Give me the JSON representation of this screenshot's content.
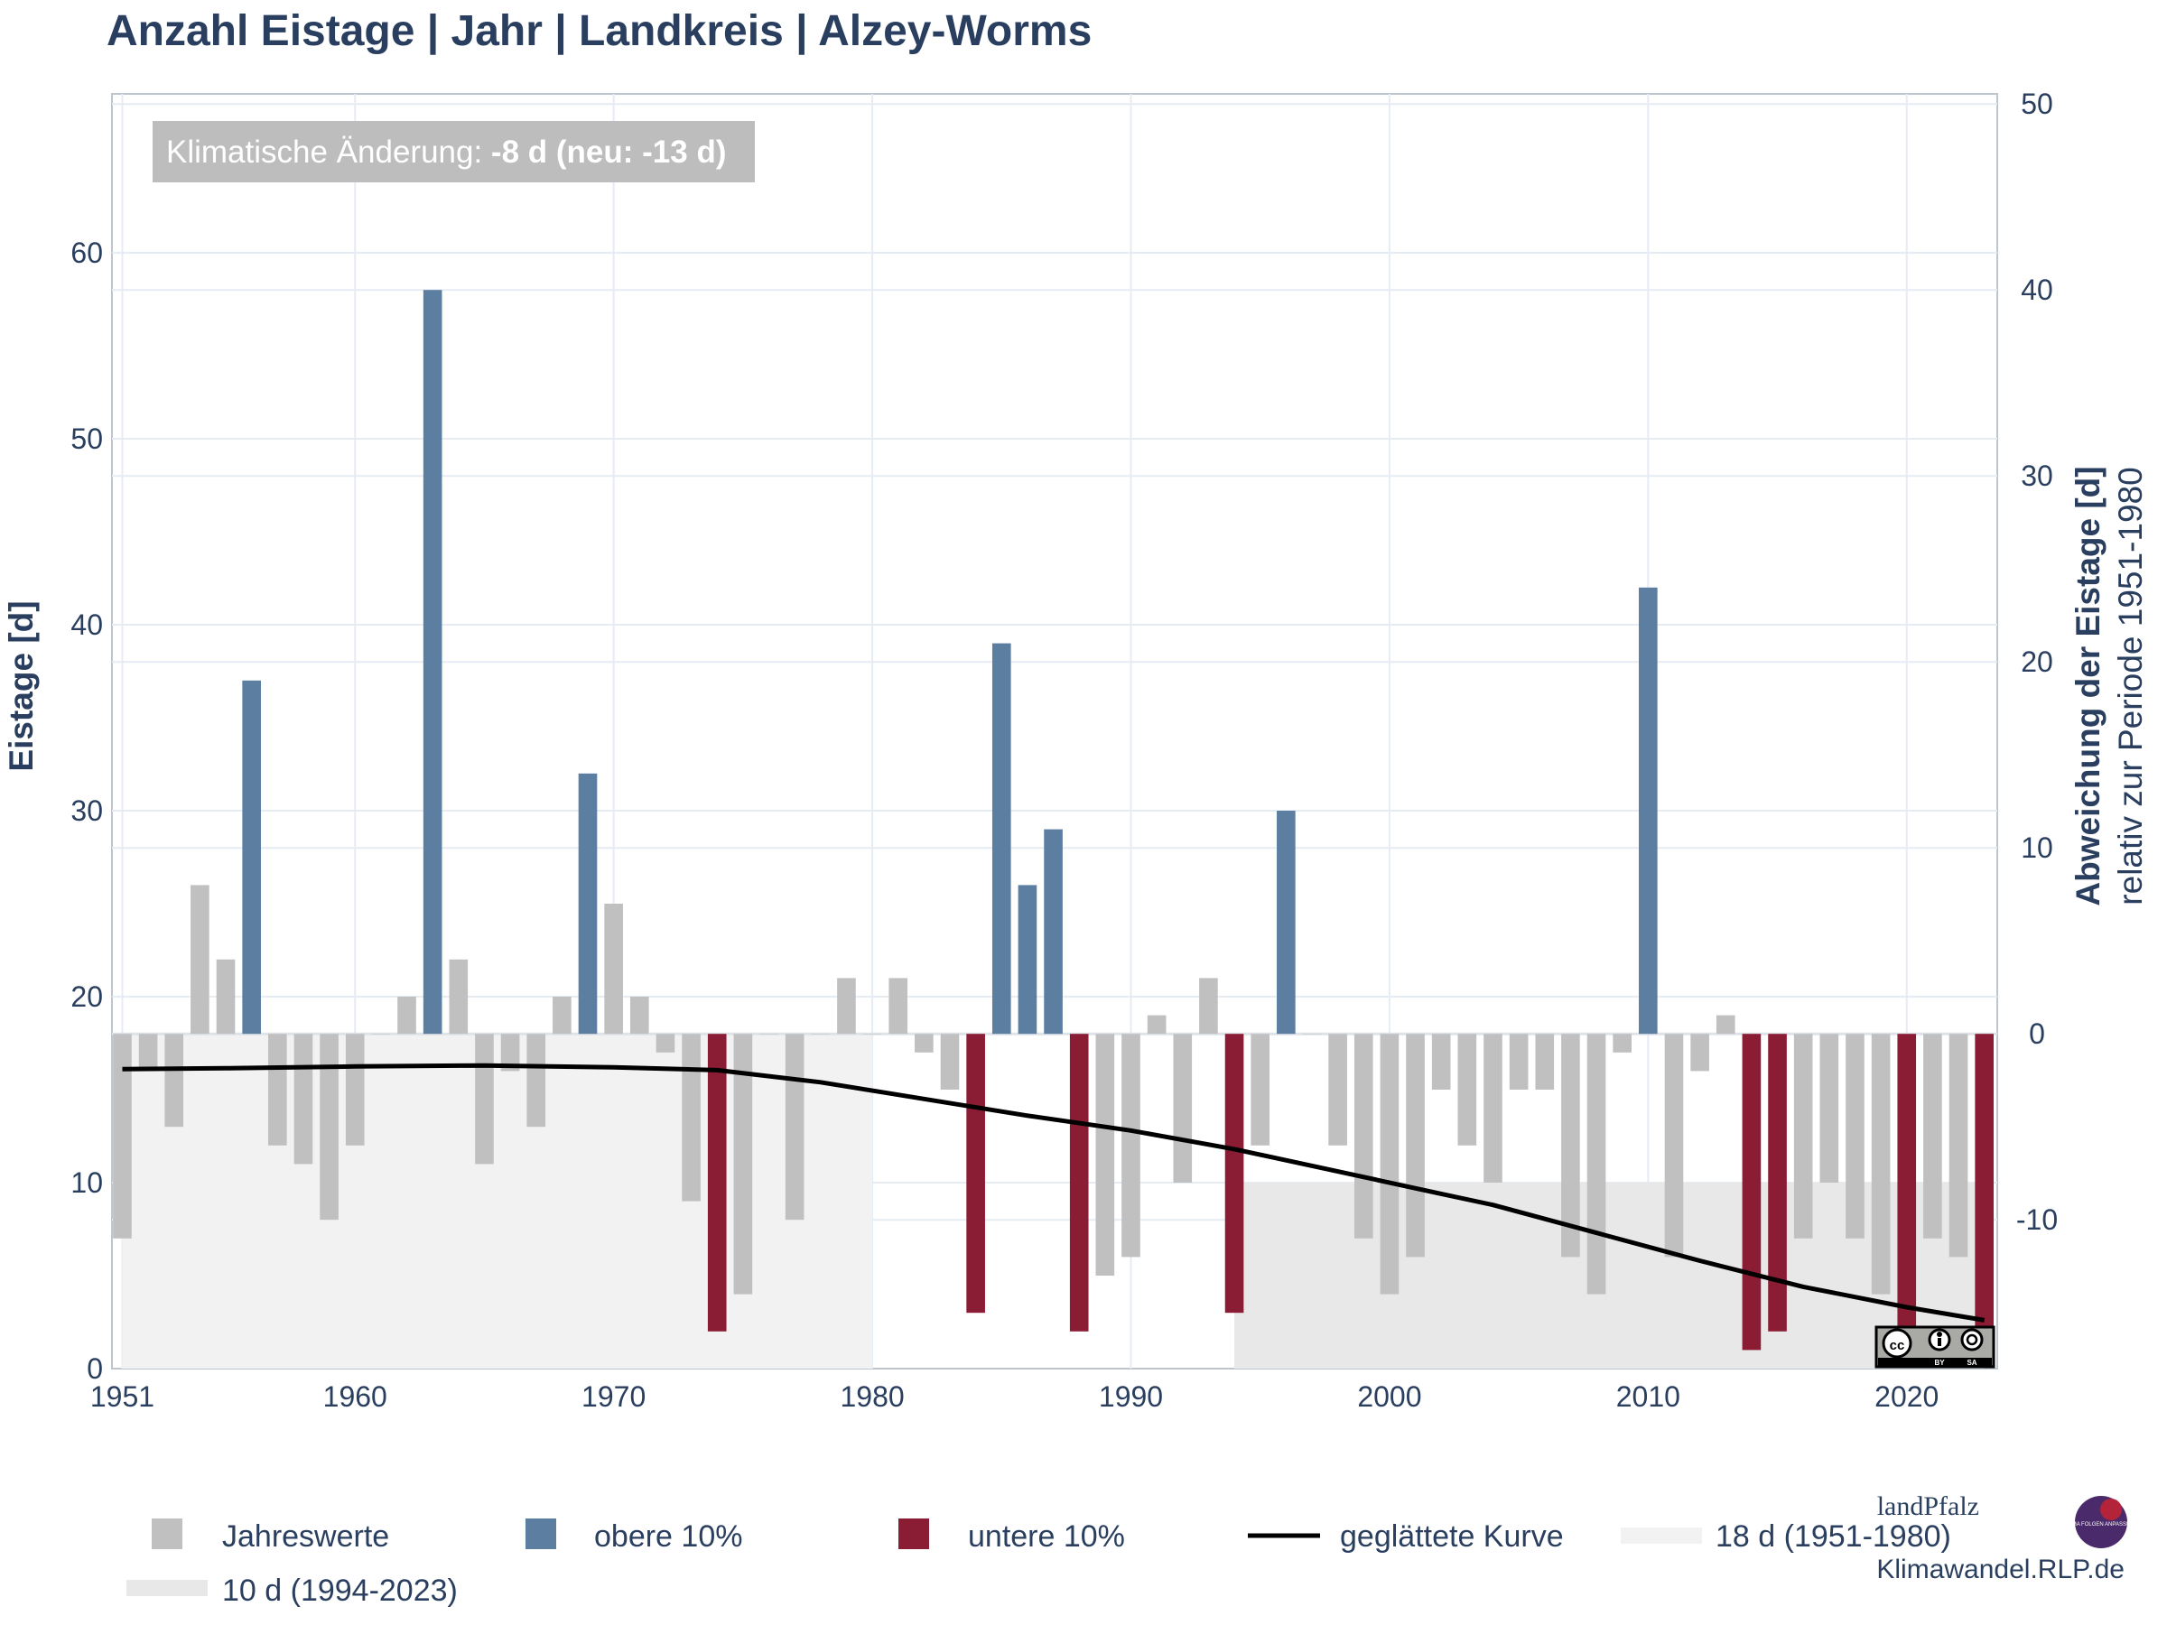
{
  "colors": {
    "normal": "#c0c0c0",
    "upper": "#5b7ea1",
    "lower": "#8a1c34",
    "curve": "#000000",
    "band_ref": "#f2f2f2",
    "band_new": "#e8e8e8",
    "grid": "#e6ecf4",
    "text": "#2a3f5f",
    "annotation_bg": "#bdbdbd"
  },
  "header": {
    "title": "Anzahl Eistage | Jahr | Landkreis | Alzey-Worms"
  },
  "annotation": {
    "label": "Klimatische Änderung: ",
    "value": "-8 d (neu: -13 d)"
  },
  "footer": {
    "source": "Klimawandel.RLP.de",
    "logo_text": "landPfalz",
    "badge_text": "KLIMA FOLGEN ANPASSUNG",
    "license_labels": [
      "cc",
      "BY",
      "SA"
    ]
  },
  "legend": {
    "items": [
      {
        "label": "Jahreswerte",
        "kind": "normal"
      },
      {
        "label": "obere 10%",
        "kind": "upper"
      },
      {
        "label": "untere 10%",
        "kind": "lower"
      },
      {
        "label": "geglättete Kurve",
        "kind": "curve"
      },
      {
        "label": "18 d (1951-1980)",
        "kind": "band_ref"
      },
      {
        "label": "10 d (1994-2023)",
        "kind": "band_new"
      }
    ]
  },
  "chart_data": {
    "type": "bar",
    "baseline": 18,
    "y_left": {
      "label": "Eistage [d]",
      "range": [
        0,
        68
      ],
      "ticks": [
        0,
        10,
        20,
        30,
        40,
        50,
        60
      ]
    },
    "y_right": {
      "label_bold": "Abweichung der Eistage [d]",
      "label_sub": "relativ zur Periode 1951-1980",
      "ticks": [
        -10,
        0,
        10,
        20,
        30,
        40,
        50
      ]
    },
    "x_axis": {
      "range": [
        1950.6,
        2023.5
      ],
      "ticks": [
        1951,
        1960,
        1970,
        1980,
        1990,
        2000,
        2010,
        2020
      ]
    },
    "bands": [
      {
        "label": "18 d (1951-1980)",
        "value": 18,
        "x0": 1951,
        "x1": 1980,
        "kind": "band_ref"
      },
      {
        "label": "10 d (1994-2023)",
        "value": 10,
        "x0": 1994,
        "x1": 2023,
        "kind": "band_new"
      }
    ],
    "series": [
      {
        "name": "Jahreswerte",
        "x": [
          1951,
          1952,
          1953,
          1954,
          1955,
          1956,
          1957,
          1958,
          1959,
          1960,
          1961,
          1962,
          1963,
          1964,
          1965,
          1966,
          1967,
          1968,
          1969,
          1970,
          1971,
          1972,
          1973,
          1974,
          1975,
          1976,
          1977,
          1978,
          1979,
          1980,
          1981,
          1982,
          1983,
          1984,
          1985,
          1986,
          1987,
          1988,
          1989,
          1990,
          1991,
          1992,
          1993,
          1994,
          1995,
          1996,
          1997,
          1998,
          1999,
          2000,
          2001,
          2002,
          2003,
          2004,
          2005,
          2006,
          2007,
          2008,
          2009,
          2010,
          2011,
          2012,
          2013,
          2014,
          2015,
          2016,
          2017,
          2018,
          2019,
          2020,
          2021,
          2022,
          2023
        ],
        "values": [
          7,
          16,
          13,
          26,
          22,
          37,
          12,
          11,
          8,
          12,
          18,
          20,
          58,
          22,
          11,
          16,
          13,
          20,
          32,
          25,
          20,
          17,
          9,
          2,
          4,
          18,
          8,
          18,
          21,
          18,
          21,
          17,
          15,
          3,
          39,
          26,
          29,
          2,
          5,
          6,
          19,
          10,
          21,
          3,
          12,
          30,
          18,
          12,
          7,
          4,
          6,
          15,
          12,
          10,
          15,
          15,
          6,
          4,
          17,
          42,
          6,
          16,
          19,
          1,
          2,
          7,
          10,
          7,
          4,
          2,
          7,
          6,
          2
        ],
        "category": [
          "n",
          "n",
          "n",
          "n",
          "n",
          "u",
          "n",
          "n",
          "n",
          "n",
          "n",
          "n",
          "u",
          "n",
          "n",
          "n",
          "n",
          "n",
          "u",
          "n",
          "n",
          "n",
          "n",
          "l",
          "n",
          "n",
          "n",
          "n",
          "n",
          "n",
          "n",
          "n",
          "n",
          "l",
          "u",
          "u",
          "u",
          "l",
          "n",
          "n",
          "n",
          "n",
          "n",
          "l",
          "n",
          "u",
          "n",
          "n",
          "n",
          "n",
          "n",
          "n",
          "n",
          "n",
          "n",
          "n",
          "n",
          "n",
          "n",
          "u",
          "n",
          "n",
          "n",
          "l",
          "l",
          "n",
          "n",
          "n",
          "n",
          "l",
          "n",
          "n",
          "l"
        ]
      },
      {
        "name": "geglättete Kurve",
        "x": [
          1951,
          1955,
          1960,
          1965,
          1970,
          1974,
          1978,
          1982,
          1986,
          1990,
          1994,
          1998,
          2002,
          2004,
          2008,
          2012,
          2016,
          2020,
          2023
        ],
        "values": [
          16.1,
          16.15,
          16.25,
          16.3,
          16.2,
          16.05,
          15.4,
          14.5,
          13.6,
          12.8,
          11.8,
          10.6,
          9.4,
          8.8,
          7.3,
          5.8,
          4.4,
          3.3,
          2.6
        ]
      }
    ]
  }
}
